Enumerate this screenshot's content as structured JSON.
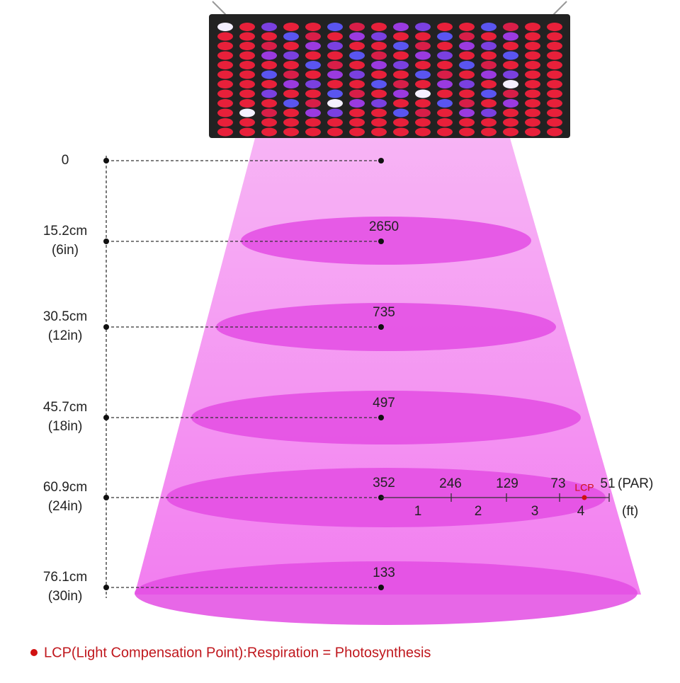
{
  "levels": [
    {
      "distance": "0"
    },
    {
      "distance": "15.2cm",
      "inches": "(6in)",
      "par": 2650
    },
    {
      "distance": "30.5cm",
      "inches": "(12in)",
      "par": 735
    },
    {
      "distance": "45.7cm",
      "inches": "(18in)",
      "par": 497
    },
    {
      "distance": "60.9cm",
      "inches": "(24in)",
      "par": 352
    },
    {
      "distance": "76.1cm",
      "inches": "(30in)",
      "par": 133
    }
  ],
  "spread": {
    "par": [
      246,
      129,
      73,
      51
    ],
    "par_unit": "(PAR)",
    "feet": [
      1,
      2,
      3,
      4
    ],
    "feet_unit": "(ft)",
    "lcp_marker": "LCP"
  },
  "legend": "LCP(Light Compensation Point):Respiration = Photosynthesis"
}
